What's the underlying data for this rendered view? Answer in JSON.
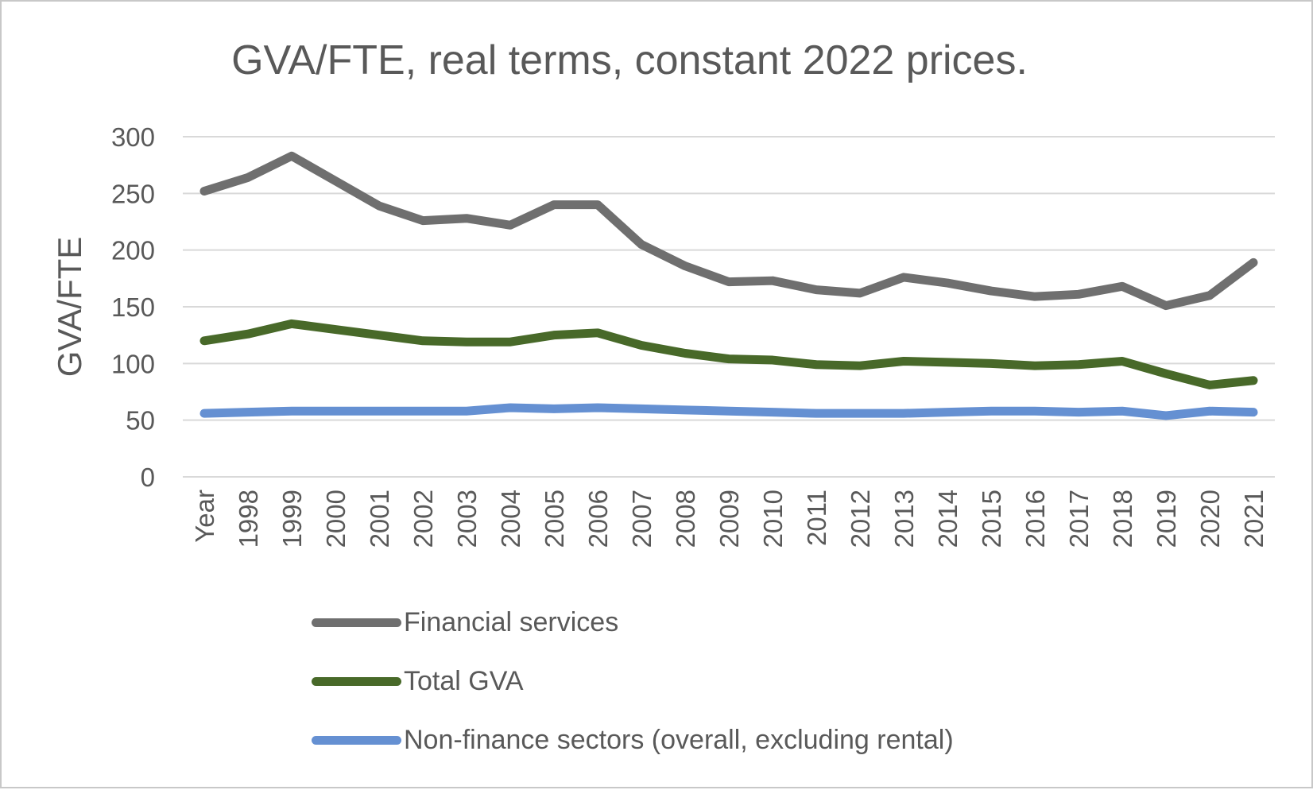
{
  "chart_data": {
    "type": "line",
    "title": "GVA/FTE, real terms, constant 2022 prices.",
    "ylabel": "GVA/FTE",
    "xlabel": "",
    "categories": [
      "Year",
      "1998",
      "1999",
      "2000",
      "2001",
      "2002",
      "2003",
      "2004",
      "2005",
      "2006",
      "2007",
      "2008",
      "2009",
      "2010",
      "2011",
      "2012",
      "2013",
      "2014",
      "2015",
      "2016",
      "2017",
      "2018",
      "2019",
      "2020",
      "2021"
    ],
    "y_ticks": [
      0,
      50,
      100,
      150,
      200,
      250,
      300
    ],
    "ylim": [
      0,
      300
    ],
    "grid": true,
    "legend_position": "bottom-left",
    "series": [
      {
        "name": "Financial services",
        "color": "#6f6f6f",
        "values": [
          252,
          264,
          283,
          261,
          239,
          226,
          228,
          222,
          240,
          240,
          205,
          186,
          172,
          173,
          165,
          162,
          176,
          171,
          164,
          159,
          161,
          168,
          151,
          160,
          189
        ]
      },
      {
        "name": "Total GVA",
        "color": "#486929",
        "values": [
          120,
          126,
          135,
          130,
          125,
          120,
          119,
          119,
          125,
          127,
          116,
          109,
          104,
          103,
          99,
          98,
          102,
          101,
          100,
          98,
          99,
          102,
          91,
          81,
          85
        ]
      },
      {
        "name": "Non-finance sectors (overall, excluding rental)",
        "color": "#6590d2",
        "values": [
          56,
          57,
          58,
          58,
          58,
          58,
          58,
          61,
          60,
          61,
          60,
          59,
          58,
          57,
          56,
          56,
          56,
          57,
          58,
          58,
          57,
          58,
          54,
          58,
          57
        ]
      }
    ],
    "colors": {
      "text": "#595959",
      "gridline": "#d9d9d9"
    }
  }
}
